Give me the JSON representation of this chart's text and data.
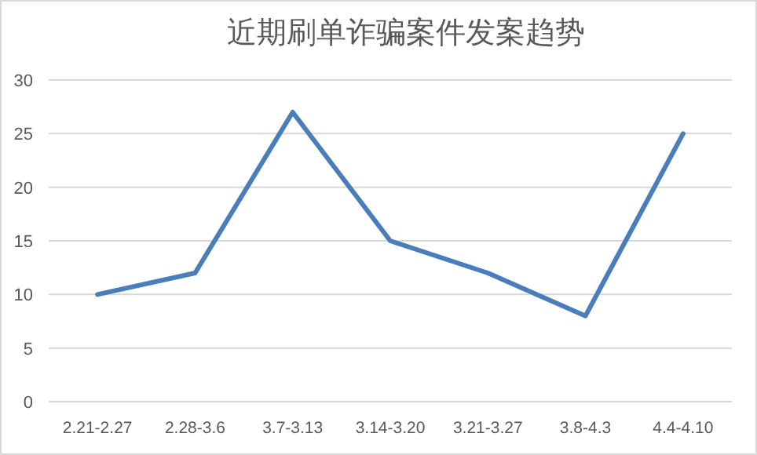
{
  "chart_data": {
    "type": "line",
    "title": "近期刷单诈骗案件发案趋势",
    "categories": [
      "2.21-2.27",
      "2.28-3.6",
      "3.7-3.13",
      "3.14-3.20",
      "3.21-3.27",
      "3.8-4.3",
      "4.4-4.10"
    ],
    "series": [
      {
        "color": "#4a7ebb",
        "values": [
          10,
          12,
          27,
          15,
          12,
          8,
          25
        ]
      }
    ],
    "ylim": [
      0,
      30
    ],
    "yticks": [
      0,
      5,
      10,
      15,
      20,
      25,
      30
    ],
    "grid": "y",
    "marker": "none",
    "line_style": "solid"
  }
}
